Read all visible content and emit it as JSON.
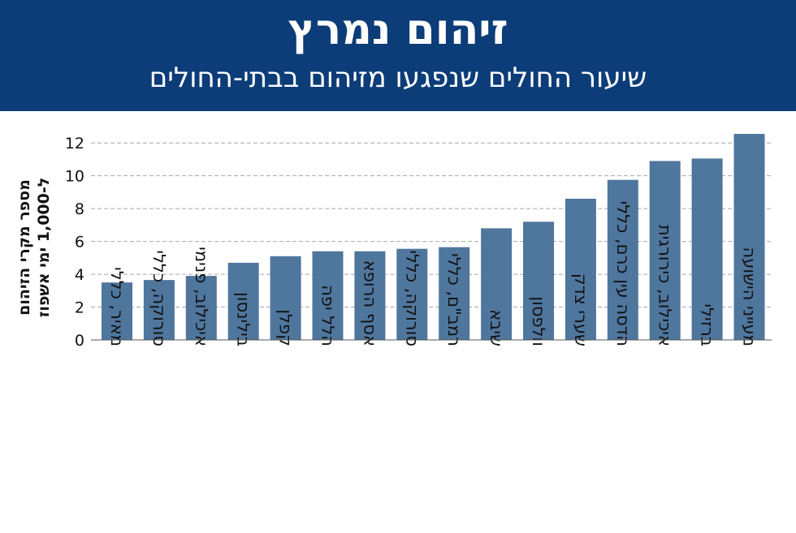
{
  "header": {
    "title": "זיהום נמרץ",
    "subtitle": "שיעור החולים שנפגעו מזיהום בבתי-החולים"
  },
  "colors": {
    "header_bg": "#0c3d78",
    "bar": "#4f769d",
    "grid": "#a6a6a6"
  },
  "chart_data": {
    "type": "bar",
    "title": "זיהום נמרץ",
    "subtitle": "שיעור החולים שנפגעו מזיהום בבתי-החולים",
    "ylabel_lines": [
      "מספר מקרי הזיהום",
      "ל-1,000 ימי אשפוז"
    ],
    "xlabel": "",
    "ylim": [
      0,
      12.8
    ],
    "yticks": [
      0,
      2,
      4,
      6,
      8,
      10,
      12
    ],
    "grid": true,
    "categories": [
      "מאיר, כללי",
      "סורוקה, כללי",
      "איכילוב, פנימי",
      "בילינסון",
      "קפלן",
      "הלל יפה",
      "אסף הרופא",
      "סורוקה, כללי",
      "רמב\"ם, כללי",
      "שיבא",
      "וולפסון",
      "שערי צדק",
      "הדסה עין כרם, כללי",
      "איכילוב, כירורגית",
      "ברזילי",
      "מעייני הישועה"
    ],
    "values": [
      3.5,
      3.65,
      3.9,
      4.7,
      5.1,
      5.4,
      5.4,
      5.55,
      5.65,
      6.8,
      7.2,
      8.6,
      9.75,
      10.9,
      11.05,
      12.55
    ]
  }
}
